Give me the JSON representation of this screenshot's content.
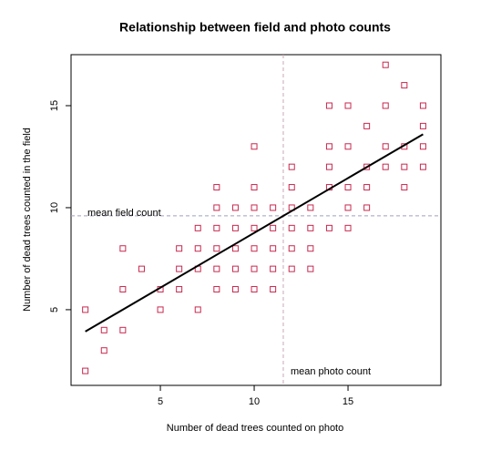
{
  "chart_data": {
    "type": "scatter",
    "title": "Relationship between field and photo counts",
    "x_label": "Number of dead trees counted on photo",
    "y_label": "Number of dead trees counted in the field",
    "color": "#c8284e",
    "x": [
      1,
      1,
      2,
      2,
      3,
      3,
      3,
      4,
      5,
      5,
      6,
      6,
      6,
      7,
      7,
      7,
      7,
      8,
      8,
      8,
      8,
      8,
      8,
      9,
      9,
      9,
      9,
      9,
      10,
      10,
      10,
      10,
      10,
      10,
      10,
      11,
      11,
      11,
      11,
      11,
      12,
      12,
      12,
      12,
      12,
      12,
      13,
      13,
      13,
      13,
      14,
      14,
      14,
      14,
      14,
      15,
      15,
      15,
      15,
      15,
      16,
      16,
      16,
      16,
      17,
      17,
      17,
      17,
      18,
      18,
      18,
      18,
      19,
      19,
      19,
      19
    ],
    "y": [
      5,
      2,
      4,
      3,
      8,
      6,
      4,
      7,
      6,
      5,
      8,
      7,
      6,
      9,
      8,
      7,
      5,
      11,
      10,
      9,
      8,
      7,
      6,
      10,
      9,
      8,
      7,
      6,
      13,
      11,
      10,
      9,
      8,
      7,
      6,
      10,
      9,
      8,
      7,
      6,
      12,
      11,
      10,
      9,
      8,
      7,
      10,
      9,
      8,
      7,
      15,
      13,
      12,
      11,
      9,
      15,
      13,
      11,
      10,
      9,
      14,
      12,
      11,
      10,
      17,
      15,
      13,
      12,
      16,
      13,
      12,
      11,
      15,
      14,
      13,
      12
    ],
    "fit": {
      "x": [
        1,
        19
      ],
      "y": [
        3.93,
        13.6
      ],
      "color": "#000000"
    },
    "mean_photo": 11.55,
    "mean_field": 9.6,
    "mean_photo_label": "mean photo count",
    "mean_field_label": "mean field count",
    "mean_photo_color": "#8b2252",
    "mean_field_color": "#2020b0",
    "xlim": [
      0.24,
      19.95
    ],
    "ylim": [
      1.29,
      17.5
    ],
    "xticks": [
      5,
      10,
      15
    ],
    "yticks": [
      5,
      10,
      15
    ]
  }
}
